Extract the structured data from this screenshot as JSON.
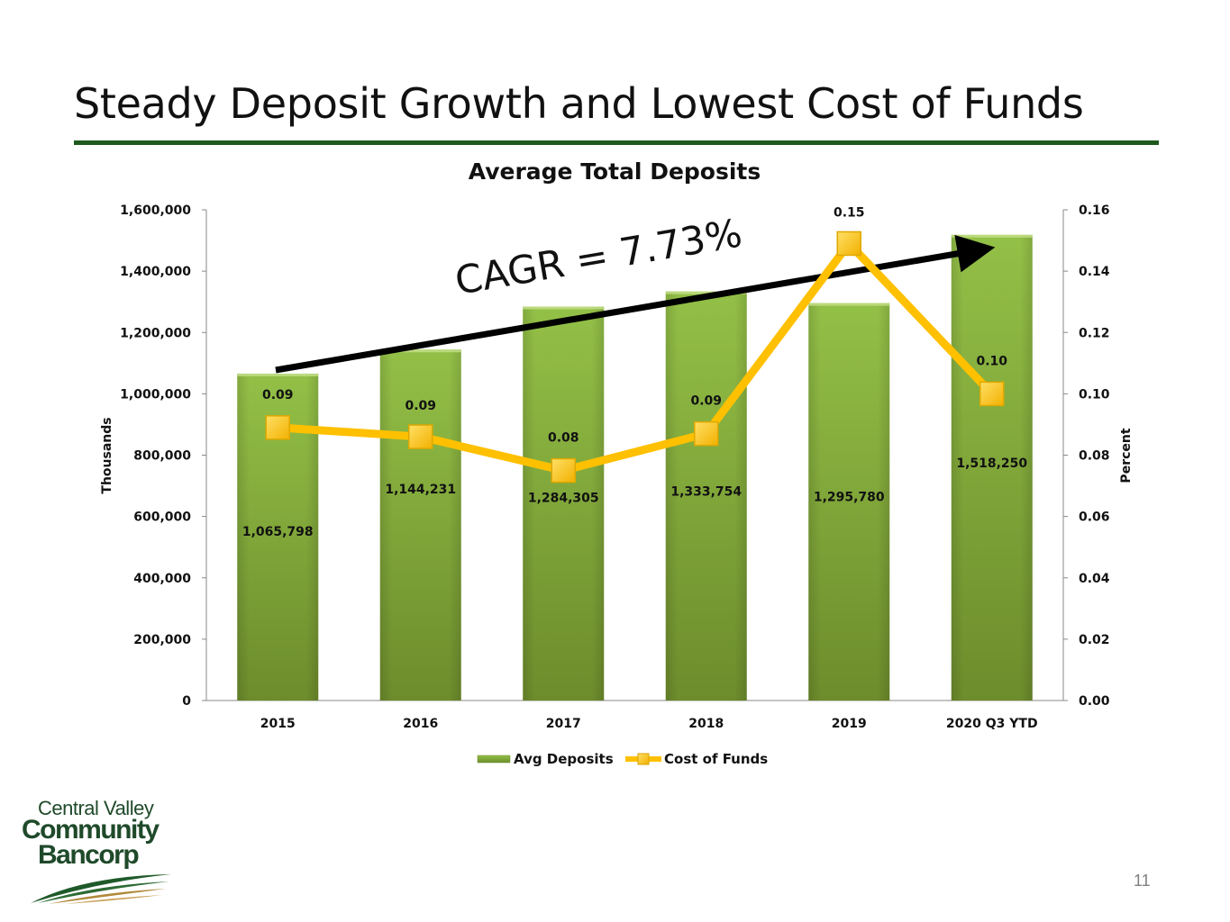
{
  "slide": {
    "title": "Steady Deposit Growth and Lowest Cost of Funds",
    "page_number": "11",
    "logo": {
      "line1": "Central Valley",
      "line2": "Community",
      "line3": "Bancorp"
    }
  },
  "colors": {
    "bar": "#8db840",
    "bar_dark": "#6f8f2e",
    "line": "#ffc000",
    "marker": "#ffc000",
    "rule": "#1e5a1e",
    "arrow": "#000000"
  },
  "chart_data": {
    "type": "bar",
    "title": "Average Total Deposits",
    "categories": [
      "2015",
      "2016",
      "2017",
      "2018",
      "2019",
      "2020 Q3 YTD"
    ],
    "series": [
      {
        "name": "Avg Deposits",
        "type": "bar",
        "axis": "left",
        "values": [
          1065798,
          1144231,
          1284305,
          1333754,
          1295780,
          1518250
        ],
        "labels": [
          "1,065,798",
          "1,144,231",
          "1,284,305",
          "1,333,754",
          "1,295,780",
          "1,518,250"
        ]
      },
      {
        "name": "Cost of Funds",
        "type": "line",
        "axis": "right",
        "values": [
          0.089,
          0.086,
          0.075,
          0.087,
          0.149,
          0.1
        ],
        "labels": [
          "0.09",
          "0.09",
          "0.08",
          "0.09",
          "0.15",
          "0.10"
        ]
      }
    ],
    "ylabel": "Thousands",
    "y2label": "Percent",
    "ylim": [
      0,
      1600000
    ],
    "y2lim": [
      0,
      0.16
    ],
    "yticks": [
      "0",
      "200,000",
      "400,000",
      "600,000",
      "800,000",
      "1,000,000",
      "1,200,000",
      "1,400,000",
      "1,600,000"
    ],
    "y2ticks": [
      "0.00",
      "0.02",
      "0.04",
      "0.06",
      "0.08",
      "0.10",
      "0.12",
      "0.14",
      "0.16"
    ],
    "annotation": "CAGR = 7.73%",
    "legend_position": "bottom",
    "grid": false
  }
}
